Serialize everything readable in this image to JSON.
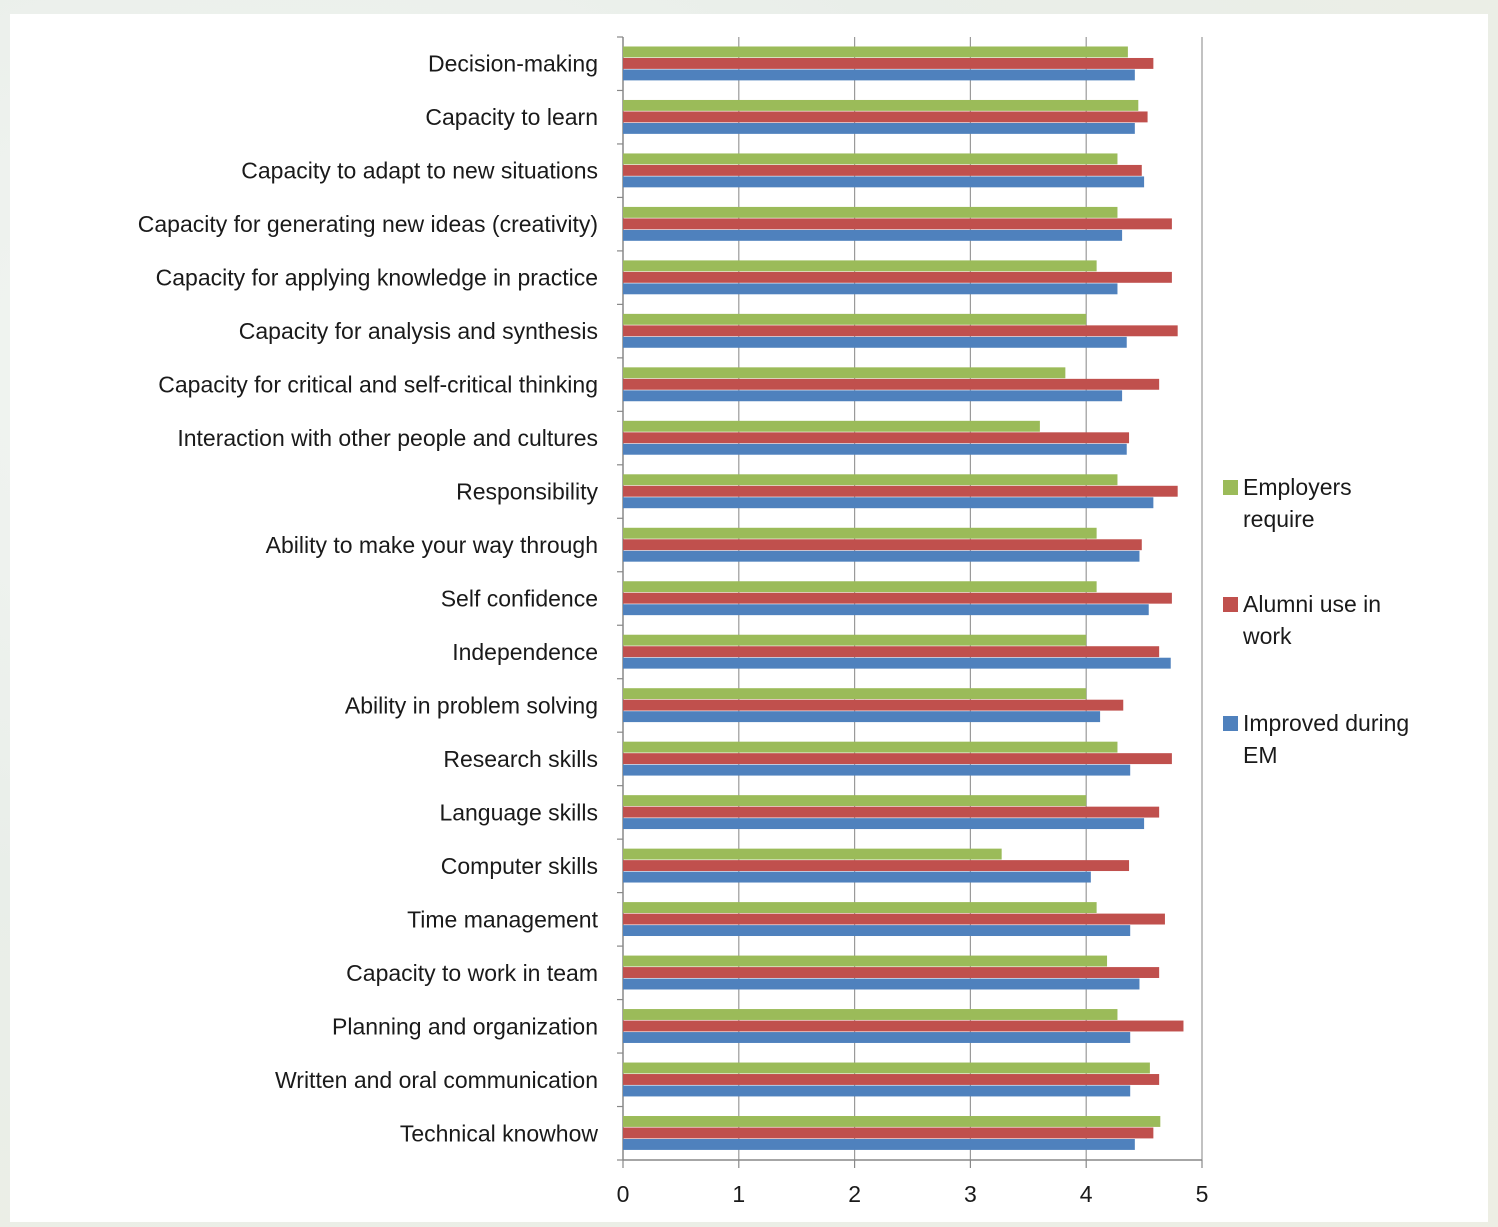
{
  "chart_data": {
    "type": "bar",
    "orientation": "horizontal",
    "categories": [
      "Decision-making",
      "Capacity to learn",
      "Capacity to adapt to new situations",
      "Capacity for generating new ideas (creativity)",
      "Capacity for applying knowledge in practice",
      "Capacity for analysis and synthesis",
      "Capacity for critical and self-critical thinking",
      "Interaction with other people and cultures",
      "Responsibility",
      "Ability to make your way through",
      "Self confidence",
      "Independence",
      "Ability in problem solving",
      "Research skills",
      "Language skills",
      "Computer skills",
      "Time management",
      "Capacity to work in team",
      "Planning and organization",
      "Written and oral communication",
      "Technical knowhow"
    ],
    "series": [
      {
        "name": "Employers require",
        "color": "#9bbb59",
        "values": [
          4.36,
          4.45,
          4.27,
          4.27,
          4.09,
          4.0,
          3.82,
          3.6,
          4.27,
          4.09,
          4.09,
          4.0,
          4.0,
          4.27,
          4.0,
          3.27,
          4.09,
          4.18,
          4.27,
          4.55,
          4.64
        ]
      },
      {
        "name": "Alumni use in work",
        "color": "#c0504d",
        "values": [
          4.58,
          4.53,
          4.48,
          4.74,
          4.74,
          4.79,
          4.63,
          4.37,
          4.79,
          4.48,
          4.74,
          4.63,
          4.32,
          4.74,
          4.63,
          4.37,
          4.68,
          4.63,
          4.84,
          4.63,
          4.58
        ]
      },
      {
        "name": "Improved during EM",
        "color": "#4f81bd",
        "values": [
          4.42,
          4.42,
          4.5,
          4.31,
          4.27,
          4.35,
          4.31,
          4.35,
          4.58,
          4.46,
          4.54,
          4.73,
          4.12,
          4.38,
          4.5,
          4.04,
          4.38,
          4.46,
          4.38,
          4.38,
          4.42
        ]
      }
    ],
    "x_ticks": [
      "0",
      "1",
      "2",
      "3",
      "4",
      "5"
    ],
    "xlim": [
      0,
      5
    ],
    "grid": "vertical",
    "legend": {
      "position": "right",
      "entries": [
        [
          "Employers",
          "require"
        ],
        [
          "Alumni use in",
          "work"
        ],
        [
          "Improved during",
          "EM"
        ]
      ]
    }
  }
}
